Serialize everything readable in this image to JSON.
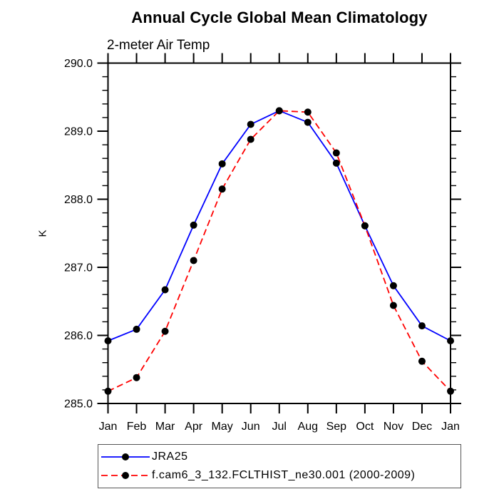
{
  "chart_data": {
    "type": "line",
    "title": "Annual Cycle Global Mean Climatology",
    "subtitle_left": "2-meter Air Temp",
    "xlabel": "",
    "ylabel": "K",
    "categories": [
      "Jan",
      "Feb",
      "Mar",
      "Apr",
      "May",
      "Jun",
      "Jul",
      "Aug",
      "Sep",
      "Oct",
      "Nov",
      "Dec",
      "Jan"
    ],
    "ylim": [
      285.0,
      290.0
    ],
    "y_major_step": 1.0,
    "y_minor_step": 0.2,
    "y_tick_labels": [
      "285.0",
      "286.0",
      "287.0",
      "288.0",
      "289.0",
      "290.0"
    ],
    "grid": false,
    "legend_position": "bottom-left",
    "axis_color": "#000000",
    "marker_color": "#000000",
    "series": [
      {
        "name": "JRA25",
        "color": "#0000ff",
        "line_style": "solid",
        "values": [
          285.92,
          286.09,
          286.67,
          287.62,
          288.52,
          289.1,
          289.3,
          289.13,
          288.53,
          287.61,
          286.73,
          286.14,
          285.92
        ]
      },
      {
        "name": "f.cam6_3_132.FCLTHIST_ne30.001 (2000-2009)",
        "color": "#ff0000",
        "line_style": "dashed",
        "values": [
          285.18,
          285.38,
          286.06,
          287.1,
          288.15,
          288.88,
          289.3,
          289.28,
          288.68,
          287.61,
          286.44,
          285.62,
          285.18
        ]
      }
    ]
  }
}
